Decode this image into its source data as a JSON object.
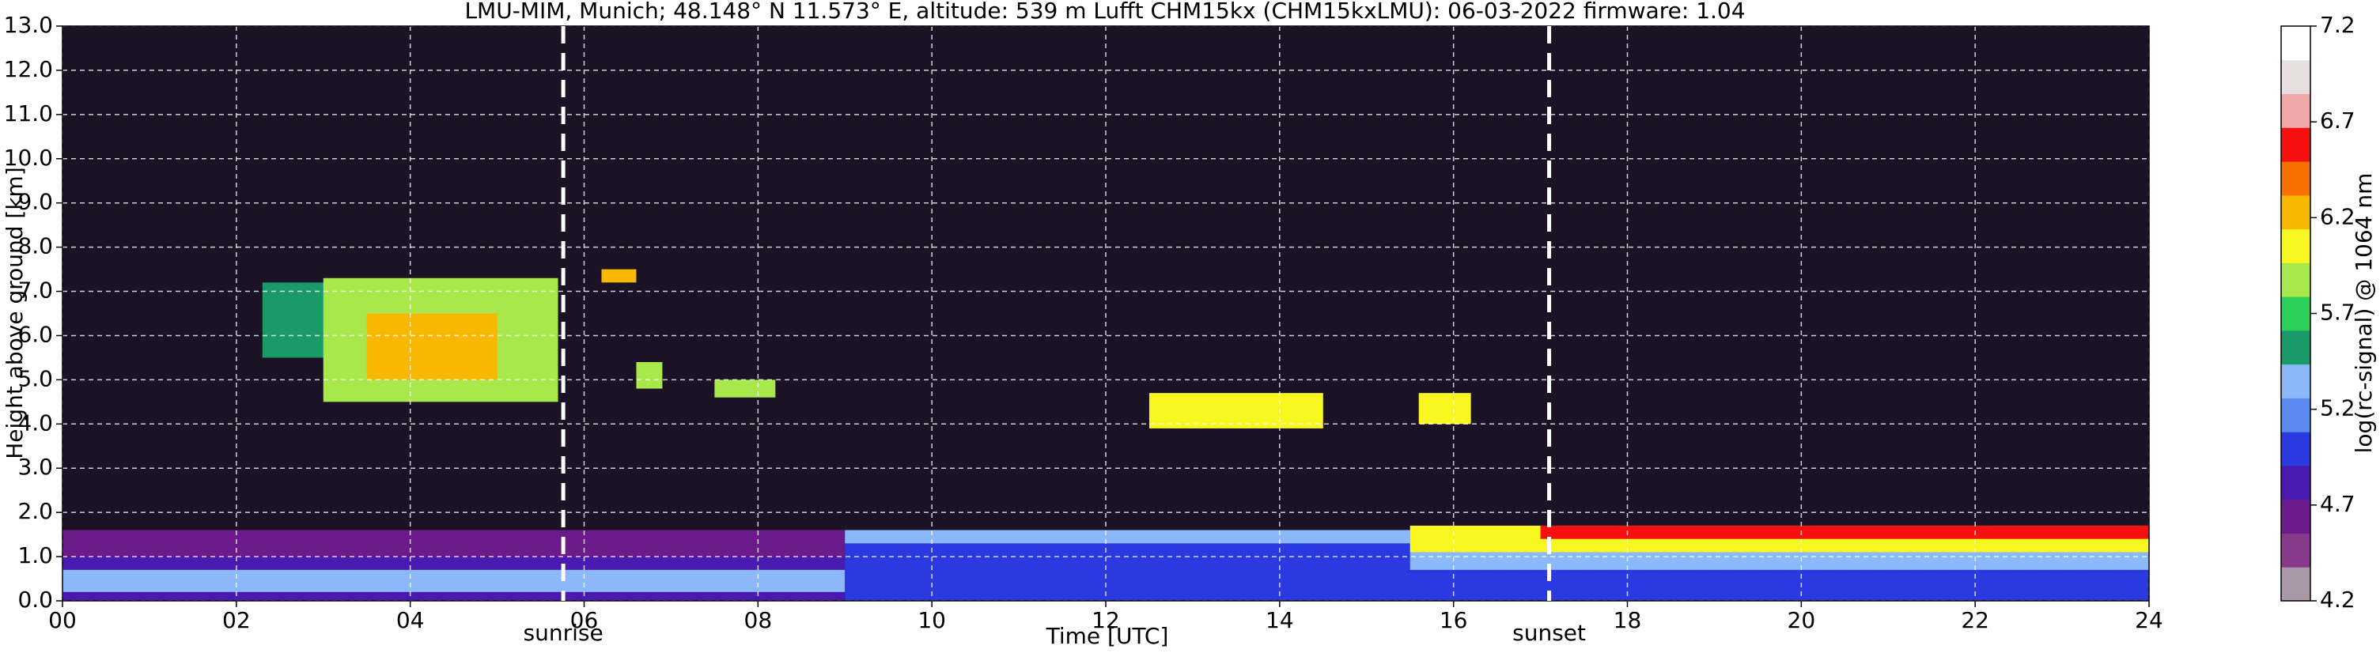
{
  "chart_data": {
    "type": "heatmap",
    "title": "LMU-MIM, Munich; 48.148° N 11.573° E, altitude: 539 m    Lufft CHM15kx (CHM15kxLMU): 06-03-2022    firmware: 1.04",
    "x_label": "Time [UTC]",
    "y_label": "Height above ground [km]",
    "colorbar_label": "log(rc-signal) @ 1064 nm",
    "xlim": [
      0,
      24
    ],
    "xticks": [
      {
        "value": 0,
        "label": "00"
      },
      {
        "value": 2,
        "label": "02"
      },
      {
        "value": 4,
        "label": "04"
      },
      {
        "value": 6,
        "label": "06"
      },
      {
        "value": 8,
        "label": "08"
      },
      {
        "value": 10,
        "label": "10"
      },
      {
        "value": 12,
        "label": "12"
      },
      {
        "value": 14,
        "label": "14"
      },
      {
        "value": 16,
        "label": "16"
      },
      {
        "value": 18,
        "label": "18"
      },
      {
        "value": 20,
        "label": "20"
      },
      {
        "value": 22,
        "label": "22"
      },
      {
        "value": 24,
        "label": "24"
      }
    ],
    "ylim": [
      0,
      13
    ],
    "yticks": [
      {
        "value": 0,
        "label": "0.0"
      },
      {
        "value": 1,
        "label": "1.0"
      },
      {
        "value": 2,
        "label": "2.0"
      },
      {
        "value": 3,
        "label": "3.0"
      },
      {
        "value": 4,
        "label": "4.0"
      },
      {
        "value": 5,
        "label": "5.0"
      },
      {
        "value": 6,
        "label": "6.0"
      },
      {
        "value": 7,
        "label": "7.0"
      },
      {
        "value": 8,
        "label": "8.0"
      },
      {
        "value": 9,
        "label": "9.0"
      },
      {
        "value": 10,
        "label": "10.0"
      },
      {
        "value": 11,
        "label": "11.0"
      },
      {
        "value": 12,
        "label": "12.0"
      },
      {
        "value": 13,
        "label": "13.0"
      }
    ],
    "clim": [
      4.2,
      7.2
    ],
    "cticks": [
      4.2,
      4.7,
      5.2,
      5.7,
      6.2,
      6.7,
      7.2
    ],
    "colormap": [
      "#a898a8",
      "#8a3a8a",
      "#6a1a8a",
      "#4a1ab0",
      "#2a3ae0",
      "#5a8af0",
      "#8ab8f8",
      "#1a9a6a",
      "#2ad05a",
      "#a8e84a",
      "#f8f820",
      "#f8b800",
      "#f87000",
      "#f81010",
      "#f0a8a8",
      "#e8e0e0",
      "#ffffff"
    ],
    "grid": true,
    "cells": [
      [
        0,
        9,
        0,
        1.6,
        4.9
      ],
      [
        0,
        9,
        1.0,
        1.6,
        4.6
      ],
      [
        0,
        9,
        0.2,
        0.7,
        5.3
      ],
      [
        9,
        24,
        0,
        1.6,
        5.0
      ],
      [
        9,
        15.5,
        1.3,
        1.6,
        5.3
      ],
      [
        15.5,
        24,
        0.7,
        1.1,
        5.4
      ],
      [
        15.5,
        24,
        1.1,
        1.7,
        6.0
      ],
      [
        17,
        24,
        1.4,
        1.7,
        6.5
      ],
      [
        2.3,
        3.5,
        5.5,
        7.2,
        5.6
      ],
      [
        3.0,
        5.7,
        4.5,
        7.3,
        5.9
      ],
      [
        3.5,
        5.0,
        5.0,
        6.5,
        6.2
      ],
      [
        6.2,
        6.6,
        7.2,
        7.5,
        6.2
      ],
      [
        6.6,
        6.9,
        4.8,
        5.4,
        5.9
      ],
      [
        7.5,
        8.2,
        4.6,
        5.0,
        5.9
      ],
      [
        12.5,
        14.5,
        3.9,
        4.7,
        6.0
      ],
      [
        15.6,
        16.2,
        4.0,
        4.7,
        6.1
      ]
    ],
    "annotations": [
      {
        "text": "sunrise",
        "x": 5.76
      },
      {
        "text": "sunset",
        "x": 17.1
      }
    ]
  }
}
